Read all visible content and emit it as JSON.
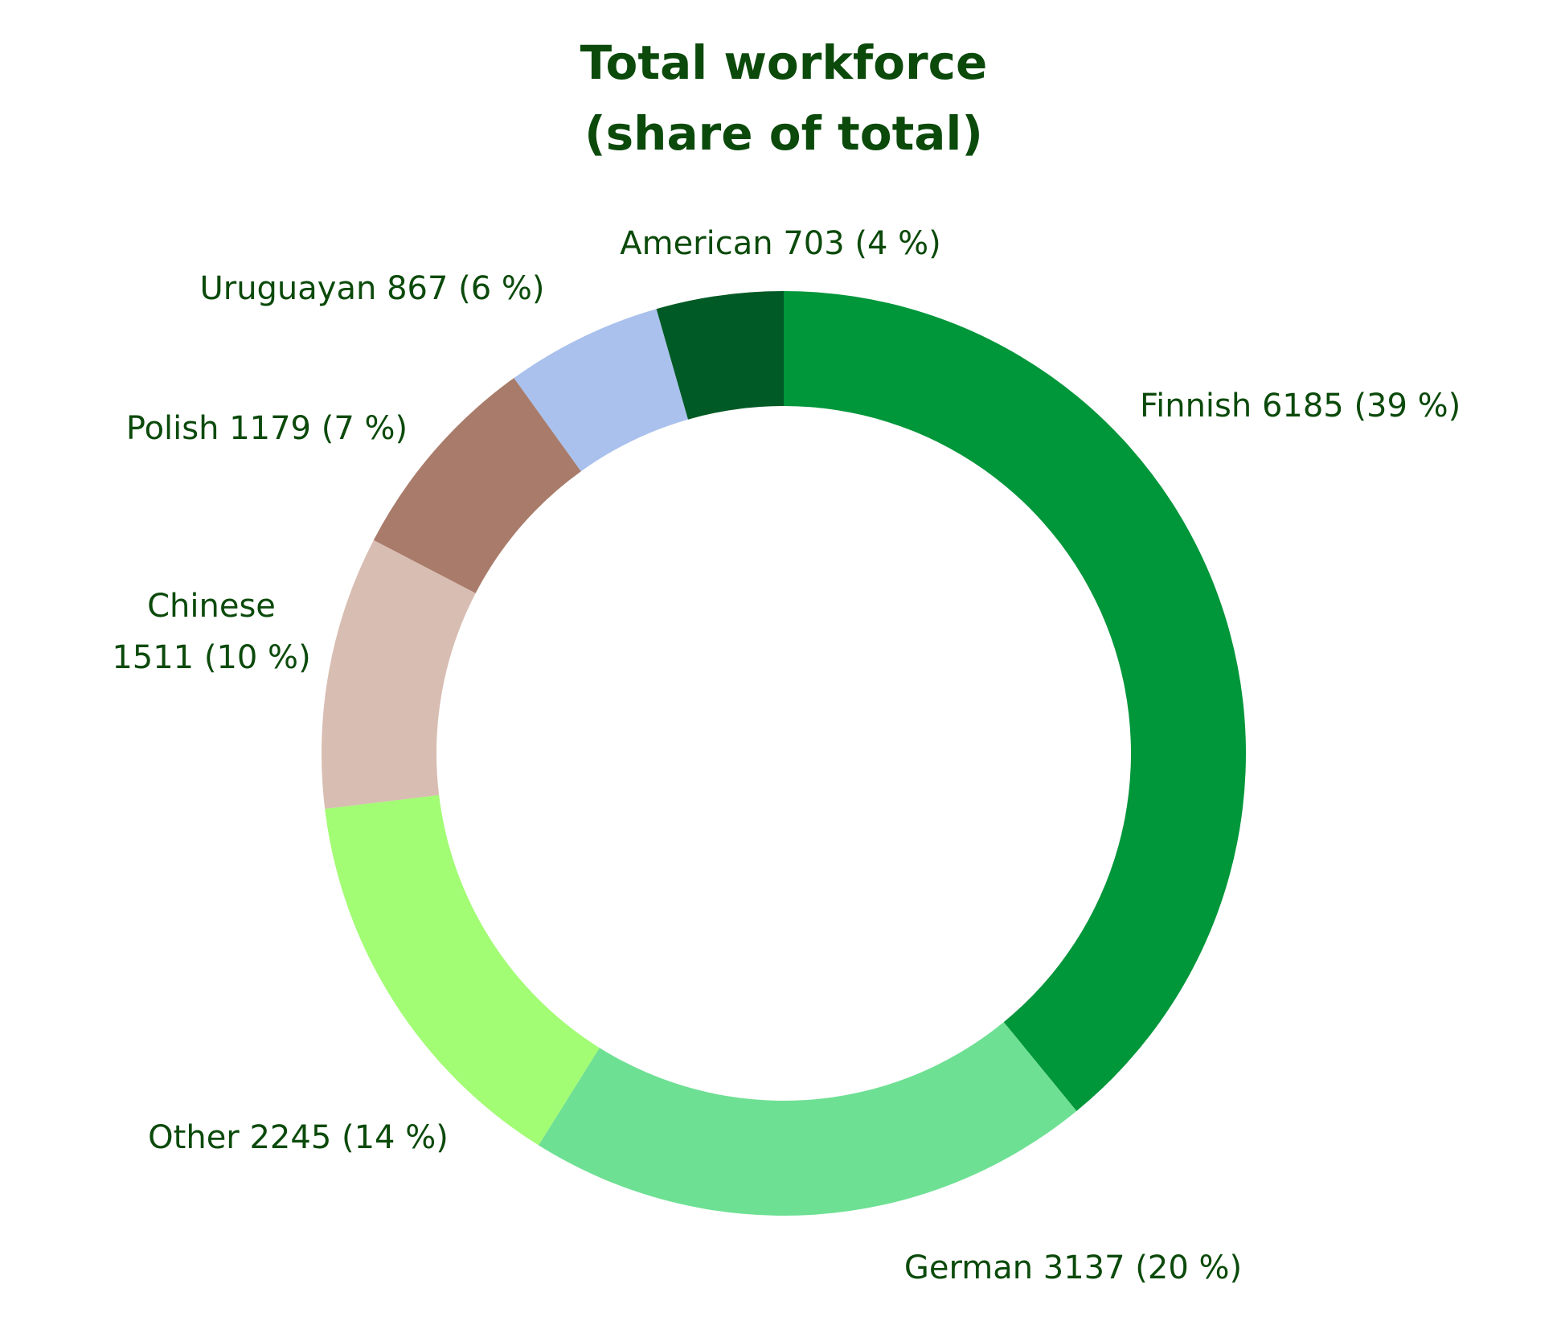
{
  "chart_data": {
    "type": "donut",
    "title": "Total workforce",
    "subtitle": "(share of total)",
    "categories": [
      "Finnish",
      "German",
      "Other",
      "Chinese",
      "Polish",
      "Uruguayan",
      "American"
    ],
    "values": [
      6185,
      3137,
      2245,
      1511,
      1179,
      867,
      703
    ],
    "value_labels": [
      "6185 (39 %)",
      "3137 (20 %)",
      "2245 (14 %)",
      "1511 (10 %)",
      "1179 (7 %)",
      "867 (6 %)",
      "703 (4 %)"
    ],
    "colors": [
      "#00963a",
      "#6ee093",
      "#a2fc74",
      "#d8bdb2",
      "#a97b6a",
      "#a9c1ec",
      "#005a25"
    ]
  }
}
